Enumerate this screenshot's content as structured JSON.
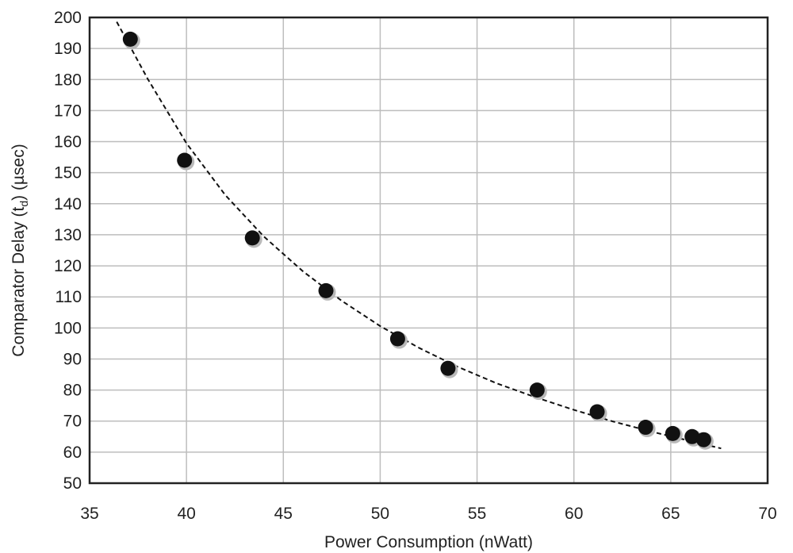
{
  "chart_data": {
    "type": "scatter",
    "xlabel": "Power Consumption (nWatt)",
    "ylabel_main": "Comparator Delay (t",
    "ylabel_sub": "d",
    "ylabel_tail": ") (µsec)",
    "xlim": [
      35,
      70
    ],
    "ylim": [
      50,
      200
    ],
    "x_ticks": [
      35,
      40,
      45,
      50,
      55,
      60,
      65,
      70
    ],
    "y_ticks": [
      50,
      60,
      70,
      80,
      90,
      100,
      110,
      120,
      130,
      140,
      150,
      160,
      170,
      180,
      190,
      200
    ],
    "grid": true,
    "series": [
      {
        "marker": "circle",
        "color": "#111111",
        "x": [
          37.1,
          39.9,
          43.4,
          47.2,
          50.9,
          53.5,
          58.1,
          61.2,
          63.7,
          65.1,
          66.1,
          66.7
        ],
        "y": [
          193,
          154,
          129,
          112,
          96.5,
          87,
          80,
          73,
          68,
          66,
          65,
          64
        ]
      }
    ],
    "trendline": {
      "style": "dashed",
      "color": "#111111",
      "x": [
        36.4,
        38,
        40,
        42,
        44,
        46,
        48,
        50,
        52,
        54,
        56,
        58,
        60,
        62,
        64,
        66,
        67.6
      ],
      "y": [
        198.6,
        180.2,
        159.5,
        142.8,
        129.4,
        118.3,
        108.8,
        100.6,
        93.6,
        87.5,
        82.2,
        77.7,
        73.6,
        69.9,
        66.6,
        63.6,
        61.2
      ]
    }
  }
}
